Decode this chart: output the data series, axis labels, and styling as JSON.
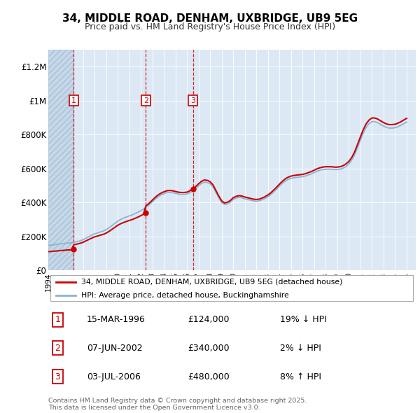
{
  "title": "34, MIDDLE ROAD, DENHAM, UXBRIDGE, UB9 5EG",
  "subtitle": "Price paid vs. HM Land Registry's House Price Index (HPI)",
  "ylim": [
    0,
    1300000
  ],
  "yticks": [
    0,
    200000,
    400000,
    600000,
    800000,
    1000000,
    1200000
  ],
  "ytick_labels": [
    "£0",
    "£200K",
    "£400K",
    "£600K",
    "£800K",
    "£1M",
    "£1.2M"
  ],
  "xstart": 1994.0,
  "xend": 2025.8,
  "plot_bg": "#dce9f5",
  "red_color": "#cc0000",
  "blue_color": "#8ab4d4",
  "sale_dates": [
    1996.21,
    2002.44,
    2006.51
  ],
  "sale_prices": [
    124000,
    340000,
    480000
  ],
  "sale_labels": [
    "1",
    "2",
    "3"
  ],
  "sale_info": [
    {
      "num": "1",
      "date": "15-MAR-1996",
      "price": "£124,000",
      "hpi": "19% ↓ HPI"
    },
    {
      "num": "2",
      "date": "07-JUN-2002",
      "price": "£340,000",
      "hpi": "2% ↓ HPI"
    },
    {
      "num": "3",
      "date": "03-JUL-2006",
      "price": "£480,000",
      "hpi": "8% ↑ HPI"
    }
  ],
  "legend_red_label": "34, MIDDLE ROAD, DENHAM, UXBRIDGE, UB9 5EG (detached house)",
  "legend_blue_label": "HPI: Average price, detached house, Buckinghamshire",
  "footer": "Contains HM Land Registry data © Crown copyright and database right 2025.\nThis data is licensed under the Open Government Licence v3.0.",
  "hpi_years": [
    1994.0,
    1994.25,
    1994.5,
    1994.75,
    1995.0,
    1995.25,
    1995.5,
    1995.75,
    1996.0,
    1996.25,
    1996.5,
    1996.75,
    1997.0,
    1997.25,
    1997.5,
    1997.75,
    1998.0,
    1998.25,
    1998.5,
    1998.75,
    1999.0,
    1999.25,
    1999.5,
    1999.75,
    2000.0,
    2000.25,
    2000.5,
    2000.75,
    2001.0,
    2001.25,
    2001.5,
    2001.75,
    2002.0,
    2002.25,
    2002.5,
    2002.75,
    2003.0,
    2003.25,
    2003.5,
    2003.75,
    2004.0,
    2004.25,
    2004.5,
    2004.75,
    2005.0,
    2005.25,
    2005.5,
    2005.75,
    2006.0,
    2006.25,
    2006.5,
    2006.75,
    2007.0,
    2007.25,
    2007.5,
    2007.75,
    2008.0,
    2008.25,
    2008.5,
    2008.75,
    2009.0,
    2009.25,
    2009.5,
    2009.75,
    2010.0,
    2010.25,
    2010.5,
    2010.75,
    2011.0,
    2011.25,
    2011.5,
    2011.75,
    2012.0,
    2012.25,
    2012.5,
    2012.75,
    2013.0,
    2013.25,
    2013.5,
    2013.75,
    2014.0,
    2014.25,
    2014.5,
    2014.75,
    2015.0,
    2015.25,
    2015.5,
    2015.75,
    2016.0,
    2016.25,
    2016.5,
    2016.75,
    2017.0,
    2017.25,
    2017.5,
    2017.75,
    2018.0,
    2018.25,
    2018.5,
    2018.75,
    2019.0,
    2019.25,
    2019.5,
    2019.75,
    2020.0,
    2020.25,
    2020.5,
    2020.75,
    2021.0,
    2021.25,
    2021.5,
    2021.75,
    2022.0,
    2022.25,
    2022.5,
    2022.75,
    2023.0,
    2023.25,
    2023.5,
    2023.75,
    2024.0,
    2024.25,
    2024.5,
    2024.75,
    2025.0
  ],
  "hpi_values": [
    148000,
    150000,
    152000,
    154000,
    156000,
    158000,
    160000,
    162000,
    163000,
    166000,
    170000,
    175000,
    181000,
    190000,
    199000,
    208000,
    216000,
    221000,
    227000,
    232000,
    240000,
    251000,
    264000,
    277000,
    290000,
    300000,
    308000,
    315000,
    321000,
    327000,
    335000,
    343000,
    352000,
    362000,
    374000,
    388000,
    404000,
    420000,
    434000,
    444000,
    452000,
    458000,
    460000,
    458000,
    454000,
    450000,
    448000,
    448000,
    450000,
    458000,
    468000,
    482000,
    498000,
    512000,
    520000,
    518000,
    510000,
    492000,
    460000,
    428000,
    400000,
    388000,
    392000,
    402000,
    418000,
    426000,
    430000,
    428000,
    422000,
    418000,
    414000,
    410000,
    408000,
    410000,
    416000,
    424000,
    434000,
    446000,
    462000,
    478000,
    496000,
    512000,
    526000,
    536000,
    542000,
    546000,
    548000,
    550000,
    552000,
    556000,
    562000,
    568000,
    576000,
    584000,
    590000,
    594000,
    596000,
    596000,
    596000,
    594000,
    594000,
    596000,
    602000,
    612000,
    626000,
    648000,
    680000,
    722000,
    766000,
    808000,
    842000,
    864000,
    876000,
    876000,
    870000,
    860000,
    850000,
    842000,
    838000,
    838000,
    840000,
    846000,
    854000,
    864000,
    874000
  ]
}
